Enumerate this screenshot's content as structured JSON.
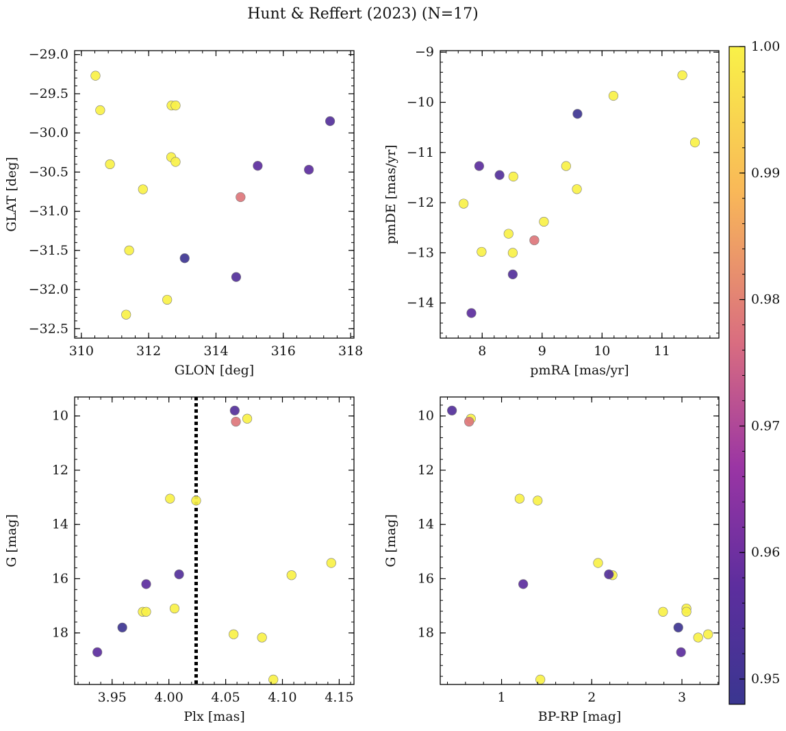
{
  "title": "Hunt & Reffert (2023) (N=17)",
  "colorbar": {
    "range": [
      0.948,
      1.0
    ],
    "ticks": [
      0.95,
      0.96,
      0.97,
      0.98,
      0.99,
      1.0
    ],
    "tick_labels": [
      "0.95",
      "0.96",
      "0.97",
      "0.98",
      "0.99",
      "1.00"
    ],
    "colormap": "plasma"
  },
  "chart_data": [
    {
      "type": "scatter",
      "xlabel": "GLON [deg]",
      "ylabel": "GLAT [deg]",
      "xlim": [
        309.8,
        318.1
      ],
      "ylim": [
        -32.62,
        -28.95
      ],
      "y_inverted": false,
      "xticks": [
        310,
        312,
        314,
        316,
        318
      ],
      "xtick_labels": [
        "310",
        "312",
        "314",
        "316",
        "318"
      ],
      "yticks": [
        -29.0,
        -29.5,
        -30.0,
        -30.5,
        -31.0,
        -31.5,
        -32.0,
        -32.5
      ],
      "ytick_labels": [
        "−29.0",
        "−29.5",
        "−30.0",
        "−30.5",
        "−31.0",
        "−31.5",
        "−32.0",
        "−32.5"
      ],
      "points": [
        {
          "x": 310.42,
          "y": -29.27,
          "c": 1.0
        },
        {
          "x": 310.56,
          "y": -29.71,
          "c": 1.0
        },
        {
          "x": 312.68,
          "y": -29.65,
          "c": 1.0
        },
        {
          "x": 312.8,
          "y": -29.65,
          "c": 1.0
        },
        {
          "x": 310.85,
          "y": -30.4,
          "c": 1.0
        },
        {
          "x": 312.67,
          "y": -30.31,
          "c": 1.0
        },
        {
          "x": 312.8,
          "y": -30.37,
          "c": 1.0
        },
        {
          "x": 311.83,
          "y": -30.72,
          "c": 1.0
        },
        {
          "x": 311.42,
          "y": -31.5,
          "c": 1.0
        },
        {
          "x": 312.55,
          "y": -32.13,
          "c": 1.0
        },
        {
          "x": 311.33,
          "y": -32.32,
          "c": 1.0
        },
        {
          "x": 313.07,
          "y": -31.6,
          "c": 0.949
        },
        {
          "x": 314.6,
          "y": -31.84,
          "c": 0.955
        },
        {
          "x": 315.24,
          "y": -30.42,
          "c": 0.957
        },
        {
          "x": 316.76,
          "y": -30.47,
          "c": 0.957
        },
        {
          "x": 317.39,
          "y": -29.85,
          "c": 0.955
        },
        {
          "x": 314.73,
          "y": -30.82,
          "c": 0.978
        }
      ]
    },
    {
      "type": "scatter",
      "xlabel": "pmRA [mas/yr]",
      "ylabel": "pmDE [mas/yr]",
      "xlim": [
        7.3,
        11.95
      ],
      "ylim": [
        -14.7,
        -8.97
      ],
      "y_inverted": false,
      "xticks": [
        8,
        9,
        10,
        11
      ],
      "xtick_labels": [
        "8",
        "9",
        "10",
        "11"
      ],
      "yticks": [
        -9,
        -10,
        -11,
        -12,
        -13,
        -14
      ],
      "ytick_labels": [
        "−9",
        "−10",
        "−11",
        "−12",
        "−13",
        "−14"
      ],
      "points": [
        {
          "x": 11.34,
          "y": -9.46,
          "c": 1.0
        },
        {
          "x": 10.19,
          "y": -9.87,
          "c": 1.0
        },
        {
          "x": 11.55,
          "y": -10.8,
          "c": 1.0
        },
        {
          "x": 9.4,
          "y": -11.27,
          "c": 1.0
        },
        {
          "x": 8.52,
          "y": -11.48,
          "c": 1.0
        },
        {
          "x": 9.58,
          "y": -11.73,
          "c": 1.0
        },
        {
          "x": 7.69,
          "y": -12.02,
          "c": 1.0
        },
        {
          "x": 9.03,
          "y": -12.38,
          "c": 1.0
        },
        {
          "x": 8.44,
          "y": -12.62,
          "c": 1.0
        },
        {
          "x": 7.99,
          "y": -12.98,
          "c": 1.0
        },
        {
          "x": 8.51,
          "y": -13.0,
          "c": 1.0
        },
        {
          "x": 9.59,
          "y": -10.23,
          "c": 0.949
        },
        {
          "x": 7.95,
          "y": -11.27,
          "c": 0.957
        },
        {
          "x": 8.29,
          "y": -11.45,
          "c": 0.955
        },
        {
          "x": 8.51,
          "y": -13.43,
          "c": 0.955
        },
        {
          "x": 7.82,
          "y": -14.2,
          "c": 0.957
        },
        {
          "x": 8.87,
          "y": -12.75,
          "c": 0.978
        }
      ]
    },
    {
      "type": "scatter",
      "xlabel": "Plx [mas]",
      "ylabel": "G [mag]",
      "xlim": [
        3.917,
        4.163
      ],
      "ylim": [
        19.9,
        9.3
      ],
      "y_inverted": true,
      "reference_line": {
        "x": 4.024,
        "style": "dotted"
      },
      "xticks": [
        3.95,
        4.0,
        4.05,
        4.1,
        4.15
      ],
      "xtick_labels": [
        "3.95",
        "4.00",
        "4.05",
        "4.10",
        "4.15"
      ],
      "yticks": [
        10,
        12,
        14,
        16,
        18
      ],
      "ytick_labels": [
        "10",
        "12",
        "14",
        "16",
        "18"
      ],
      "points": [
        {
          "x": 4.069,
          "y": 10.1,
          "c": 1.0
        },
        {
          "x": 4.001,
          "y": 13.05,
          "c": 1.0
        },
        {
          "x": 4.024,
          "y": 13.12,
          "c": 1.0
        },
        {
          "x": 4.143,
          "y": 15.42,
          "c": 1.0
        },
        {
          "x": 4.108,
          "y": 15.87,
          "c": 1.0
        },
        {
          "x": 3.977,
          "y": 17.22,
          "c": 1.0
        },
        {
          "x": 3.98,
          "y": 17.22,
          "c": 1.0
        },
        {
          "x": 4.005,
          "y": 17.1,
          "c": 1.0
        },
        {
          "x": 4.057,
          "y": 18.05,
          "c": 1.0
        },
        {
          "x": 4.082,
          "y": 18.17,
          "c": 1.0
        },
        {
          "x": 4.092,
          "y": 19.72,
          "c": 1.0
        },
        {
          "x": 4.058,
          "y": 9.8,
          "c": 0.955
        },
        {
          "x": 4.009,
          "y": 15.84,
          "c": 0.955
        },
        {
          "x": 3.98,
          "y": 16.2,
          "c": 0.957
        },
        {
          "x": 3.959,
          "y": 17.8,
          "c": 0.949
        },
        {
          "x": 3.937,
          "y": 18.71,
          "c": 0.957
        },
        {
          "x": 4.059,
          "y": 10.21,
          "c": 0.978
        }
      ]
    },
    {
      "type": "scatter",
      "xlabel": "BP-RP [mag]",
      "ylabel": "G [mag]",
      "xlim": [
        0.32,
        3.41
      ],
      "ylim": [
        19.9,
        9.3
      ],
      "y_inverted": true,
      "xticks": [
        1,
        2,
        3
      ],
      "xtick_labels": [
        "1",
        "2",
        "3"
      ],
      "yticks": [
        10,
        12,
        14,
        16,
        18
      ],
      "ytick_labels": [
        "10",
        "12",
        "14",
        "16",
        "18"
      ],
      "points": [
        {
          "x": 0.66,
          "y": 10.1,
          "c": 1.0
        },
        {
          "x": 1.2,
          "y": 13.05,
          "c": 1.0
        },
        {
          "x": 1.4,
          "y": 13.12,
          "c": 1.0
        },
        {
          "x": 2.07,
          "y": 15.42,
          "c": 1.0
        },
        {
          "x": 2.23,
          "y": 15.87,
          "c": 1.0
        },
        {
          "x": 2.79,
          "y": 17.22,
          "c": 1.0
        },
        {
          "x": 3.05,
          "y": 17.1,
          "c": 1.0
        },
        {
          "x": 3.05,
          "y": 17.22,
          "c": 1.0
        },
        {
          "x": 3.29,
          "y": 18.05,
          "c": 1.0
        },
        {
          "x": 3.18,
          "y": 18.17,
          "c": 1.0
        },
        {
          "x": 1.43,
          "y": 19.72,
          "c": 1.0
        },
        {
          "x": 0.45,
          "y": 9.8,
          "c": 0.955
        },
        {
          "x": 2.19,
          "y": 15.84,
          "c": 0.955
        },
        {
          "x": 1.24,
          "y": 16.2,
          "c": 0.957
        },
        {
          "x": 2.96,
          "y": 17.8,
          "c": 0.949
        },
        {
          "x": 2.99,
          "y": 18.71,
          "c": 0.957
        },
        {
          "x": 0.64,
          "y": 10.21,
          "c": 0.978
        }
      ]
    }
  ]
}
